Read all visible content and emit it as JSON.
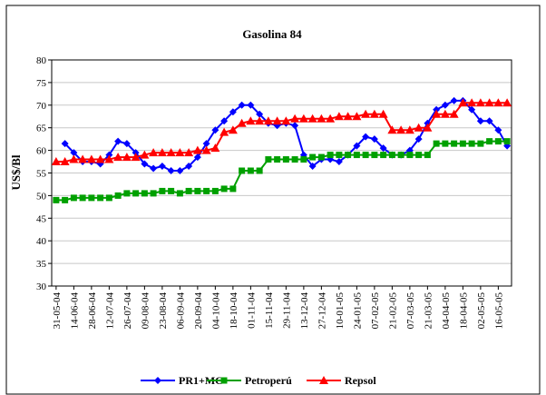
{
  "chart_data": {
    "type": "line",
    "title": "Gasolina 84",
    "y_label": "US$/Bl",
    "categories": [
      "31-05-04",
      null,
      "14-06-04",
      null,
      "28-06-04",
      null,
      "12-07-04",
      null,
      "26-07-04",
      null,
      "09-08-04",
      null,
      "23-08-04",
      null,
      "06-09-04",
      null,
      "20-09-04",
      null,
      "04-10-04",
      null,
      "18-10-04",
      null,
      "01-11-04",
      null,
      "15-11-04",
      null,
      "29-11-04",
      null,
      "13-12-04",
      null,
      "27-12-04",
      null,
      "10-01-05",
      null,
      "24-01-05",
      null,
      "07-02-05",
      null,
      "21-02-05",
      null,
      "07-03-05",
      null,
      "21-03-05",
      null,
      "04-04-05",
      null,
      "18-04-05",
      null,
      "02-05-05",
      null,
      "16-05-05",
      null
    ],
    "series": [
      {
        "name": "PR1+MC",
        "color": "#0000ff",
        "marker": "diamond",
        "values": [
          null,
          61.5,
          59.5,
          57.5,
          57.5,
          57,
          59,
          62,
          61.5,
          59.5,
          57,
          56,
          56.5,
          55.5,
          55.5,
          56.5,
          58.5,
          61.5,
          64.5,
          66.5,
          68.5,
          70,
          70,
          68,
          66,
          65.5,
          66,
          65.5,
          59,
          56.5,
          58,
          58,
          57.5,
          59,
          61,
          63,
          62.5,
          60.5,
          59,
          59,
          60,
          62.5,
          66,
          69,
          70,
          71,
          71,
          69,
          66.5,
          66.5,
          64.5,
          61
        ]
      },
      {
        "name": "Petroperú",
        "color": "#00a000",
        "marker": "square",
        "values": [
          49,
          49,
          49.5,
          49.5,
          49.5,
          49.5,
          49.5,
          50,
          50.5,
          50.5,
          50.5,
          50.5,
          51,
          51,
          50.5,
          51,
          51,
          51,
          51,
          51.5,
          51.5,
          55.5,
          55.5,
          55.5,
          58,
          58,
          58,
          58,
          58,
          58.5,
          58.5,
          59,
          59,
          59,
          59,
          59,
          59,
          59,
          59,
          59,
          59,
          59,
          59,
          61.5,
          61.5,
          61.5,
          61.5,
          61.5,
          61.5,
          62,
          62,
          62
        ]
      },
      {
        "name": "Repsol",
        "color": "#ff0000",
        "marker": "triangle",
        "values": [
          57.5,
          57.5,
          58,
          58,
          58,
          58,
          58,
          58.5,
          58.5,
          58.5,
          59,
          59.5,
          59.5,
          59.5,
          59.5,
          59.5,
          60,
          60,
          60.5,
          64,
          64.5,
          66,
          66.5,
          66.5,
          66.5,
          66.5,
          66.5,
          67,
          67,
          67,
          67,
          67,
          67.5,
          67.5,
          67.5,
          68,
          68,
          68,
          64.5,
          64.5,
          64.5,
          65,
          65,
          68,
          68,
          68,
          70.5,
          70.5,
          70.5,
          70.5,
          70.5,
          70.5
        ]
      }
    ],
    "ylim": [
      30,
      80
    ],
    "yticks": [
      30,
      35,
      40,
      45,
      50,
      55,
      60,
      65,
      70,
      75,
      80
    ],
    "grid": true,
    "legend": "bottom"
  }
}
